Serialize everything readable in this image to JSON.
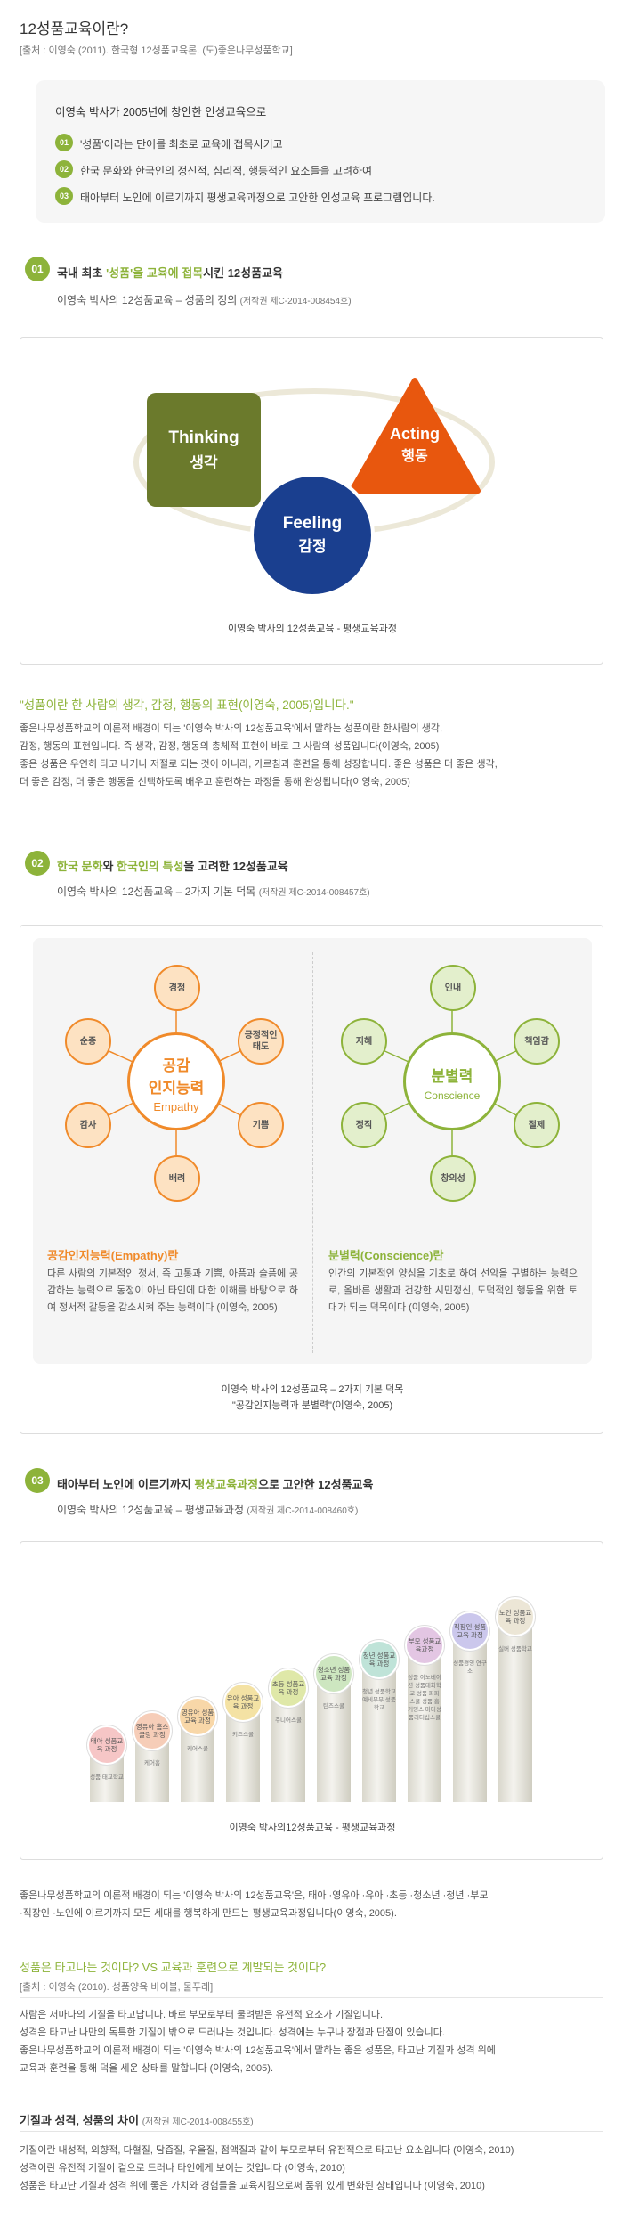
{
  "header": {
    "title": "12성품교육이란?",
    "source": "[출처 : 이영숙 (2011). 한국형 12성품교육론. (도)좋은나무성품학교]"
  },
  "intro": {
    "title": "이영숙 박사가 2005년에 창안한 인성교육으로",
    "items": [
      {
        "num": "01",
        "text": "'성품'이라는 단어를 최초로 교육에 접목시키고"
      },
      {
        "num": "02",
        "text": "한국 문화와 한국인의 정신적, 심리적, 행동적인 요소들을 고려하여"
      },
      {
        "num": "03",
        "text": "태아부터 노인에 이르기까지 평생교육과정으로 고안한 인성교육 프로그램입니다."
      }
    ]
  },
  "sec1": {
    "num": "01",
    "title_pre": "국내 최초 ",
    "title_hl": "'성품'을 교육에 접목",
    "title_post": "시킨 12성품교육",
    "subtitle": "이영숙 박사의 12성품교육 – 성품의 정의",
    "copyright": "(저작권 제C-2014-008454호)",
    "diagram": {
      "thinking_en": "Thinking",
      "thinking_ko": "생각",
      "acting_en": "Acting",
      "acting_ko": "행동",
      "feeling_en": "Feeling",
      "feeling_ko": "감정",
      "colors": {
        "thinking": "#6b7a2c",
        "acting": "#e8570e",
        "feeling": "#1a3f8f"
      }
    },
    "caption": "이영숙 박사의 12성품교육 - 평생교육과정",
    "quote": "\"성품이란 한 사람의 생각, 감정, 행동의 표현(이영숙, 2005)입니다.\"",
    "paragraph": [
      "좋은나무성품학교의 이론적 배경이 되는 '이영숙 박사의 12성품교육'에서 말하는 성품이란 한사람의 생각,",
      "감정, 행동의 표현입니다. 즉 생각, 감정, 행동의 총체적 표현이 바로 그 사람의 성품입니다(이영숙, 2005)",
      "좋은 성품은 우연히 타고 나거나 저절로 되는 것이 아니라, 가르침과 훈련을 통해 성장합니다. 좋은 성품은 더 좋은 생각,",
      "더 좋은 감정, 더 좋은 행동을 선택하도록 배우고 훈련하는 과정을 통해 완성됩니다(이영숙, 2005)"
    ]
  },
  "sec2": {
    "num": "02",
    "title_hl1": "한국 문화",
    "title_mid": "와 ",
    "title_hl2": "한국인의 특성",
    "title_post": "을 고려한 12성품교육",
    "subtitle": "이영숙 박사의 12성품교육 – 2가지 기본 덕목",
    "copyright": "(저작권 제C-2014-008457호)",
    "empathy": {
      "center_ko1": "공감",
      "center_ko2": "인지능력",
      "center_en": "Empathy",
      "items": [
        "경청",
        "긍정적인 태도",
        "기쁨",
        "배려",
        "감사",
        "순종"
      ],
      "heading": "공감인지능력(Empathy)란",
      "desc": "다른 사람의 기본적인 정서, 즉 고통과 기쁨, 아픔과 슬픔에 공감하는 능력으로 동정이 아닌 타인에 대한 이해를 바탕으로 하여 정서적 갈등을 감소시켜 주는 능력이다 (이영숙, 2005)"
    },
    "conscience": {
      "center_ko": "분별력",
      "center_en": "Conscience",
      "items": [
        "인내",
        "책임감",
        "절제",
        "창의성",
        "정직",
        "지혜"
      ],
      "heading": "분별력(Conscience)란",
      "desc": "인간의 기본적인 양심을 기초로 하여 선악을 구별하는 능력으로, 올바른 생활과 건강한 시민정신, 도덕적인 행동을 위한 토대가 되는 덕목이다 (이영숙, 2005)"
    },
    "caption1": "이영숙 박사의 12성품교육 – 2가지 기본 덕목",
    "caption2": "\"공감인지능력과 분별력\"(이영숙, 2005)"
  },
  "sec3": {
    "num": "03",
    "title_pre": "태아부터 노인에 이르기까지 ",
    "title_hl": "평생교육과정",
    "title_post": "으로 고안한 12성품교육",
    "subtitle": "이영숙 박사의 12성품교육 – 평생교육과정",
    "copyright": "(저작권 제C-2014-008460호)",
    "steps": [
      {
        "top": "태아 성품교육 과정",
        "label": "성품 태교학교",
        "color": "#f6c6c6",
        "level": 1
      },
      {
        "top": "영유아 홈스쿨링 과정",
        "label": "케어홈",
        "color": "#f6cdb8",
        "level": 2
      },
      {
        "top": "영유아 성품교육 과정",
        "label": "케어스쿨",
        "color": "#f8d7a8",
        "level": 3
      },
      {
        "top": "유아 성품교육 과정",
        "label": "키즈스쿨",
        "color": "#f4e2a4",
        "level": 4
      },
      {
        "top": "초등 성품교육 과정",
        "label": "주니어스쿨",
        "color": "#dfe8a8",
        "level": 5
      },
      {
        "top": "청소년 성품교육 과정",
        "label": "틴즈스쿨",
        "color": "#cde6c0",
        "level": 6
      },
      {
        "top": "청년 성품교육 과정",
        "label": "청년 성품학교 예비부부 성품학교",
        "color": "#bfe3d8",
        "level": 7
      },
      {
        "top": "부모 성품교육과정",
        "label": "성품 이노베이션 성품대화학교 성품 파파스쿨 성품 홈커밍스 마더성품리더십스쿨",
        "color": "#e3c6e3",
        "level": 8
      },
      {
        "top": "직장인 성품교육 과정",
        "label": "성품경영 연구소",
        "color": "#cbc7ec",
        "level": 9
      },
      {
        "top": "노인 성품교육 과정",
        "label": "실버 성품학교",
        "color": "#ece6d6",
        "level": 10
      }
    ],
    "caption": "이영숙 박사의12성품교육 - 평생교육과정",
    "paragraph": [
      "좋은나무성품학교의 이론적 배경이 되는 '이영숙 박사의 12성품교육'은, 태아 ·영유아 ·유아 ·초등 ·청소년 ·청년 ·부모",
      "·직장인 ·노인에 이르기까지 모든 세대를 행복하게 만드는 평생교육과정입니다(이영숙, 2005)."
    ]
  },
  "sec4": {
    "title": "성품은 타고나는 것이다? VS 교육과 훈련으로 계발되는 것이다?",
    "source": "[출처 : 이영숙 (2010). 성품양육 바이블, 물푸레]",
    "paragraph": [
      "사람은 저마다의 기질을 타고납니다. 바로 부모로부터 물려받은 유전적 요소가 기질입니다.",
      "성격은 타고난 나만의 독특한 기질이 밖으로 드러나는 것입니다. 성격에는 누구나 장점과 단점이 있습니다.",
      "좋은나무성품학교의 이론적 배경이 되는 '이영숙 박사의 12성품교육'에서 말하는 좋은 성품은, 타고난 기질과 성격 위에",
      "교육과 훈련을 통해 덕을 세운 상태를 말합니다 (이영숙, 2005)."
    ]
  },
  "sec5": {
    "title": "기질과 성격, 성품의 차이",
    "copyright": "(저작권 제C-2014-008455호)",
    "paragraph": [
      "기질이란 내성적, 외향적, 다혈질, 담즙질, 우울질, 점액질과 같이 부모로부터 유전적으로 타고난 요소입니다 (이영숙, 2010)",
      "성격이란 유전적 기질이 겉으로 드러나 타인에게 보이는 것입니다 (이영숙, 2010)",
      "성품은 타고난 기질과 성격 위에 좋은 가치와 경험들을 교육시킴으로써 품위 있게 변화된 상태입니다 (이영숙, 2010)"
    ]
  }
}
